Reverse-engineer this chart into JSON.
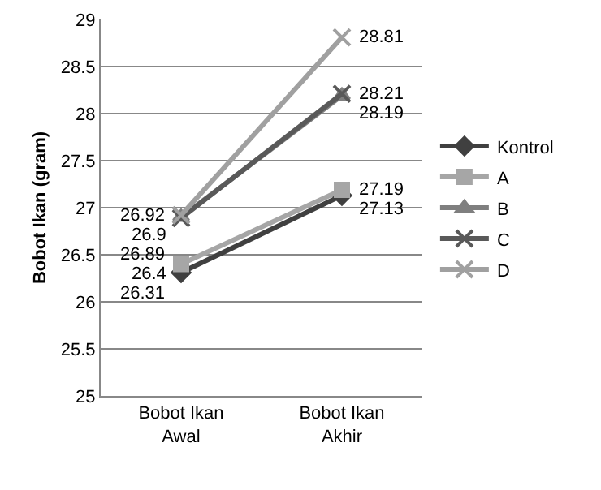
{
  "chart_data": {
    "type": "line",
    "ylabel": "Bobot Ikan (gram)",
    "categories": [
      "Bobot Ikan Awal",
      "Bobot Ikan Akhir"
    ],
    "series": [
      {
        "name": "Kontrol",
        "color": "#404040",
        "marker": "diamond",
        "values": [
          26.31,
          27.13
        ]
      },
      {
        "name": "A",
        "color": "#a6a6a6",
        "marker": "square",
        "values": [
          26.4,
          27.19
        ]
      },
      {
        "name": "B",
        "color": "#7f7f7f",
        "marker": "triangle",
        "values": [
          26.9,
          28.19
        ]
      },
      {
        "name": "C",
        "color": "#595959",
        "marker": "cross",
        "values": [
          26.89,
          28.21
        ]
      },
      {
        "name": "D",
        "color": "#a0a0a0",
        "marker": "cross",
        "values": [
          26.92,
          28.81
        ]
      }
    ],
    "ylim": [
      25,
      29
    ],
    "yticks": [
      25,
      25.5,
      26,
      26.5,
      27,
      27.5,
      28,
      28.5,
      29
    ],
    "grid": "y",
    "legend": "right",
    "data_labels": true
  }
}
